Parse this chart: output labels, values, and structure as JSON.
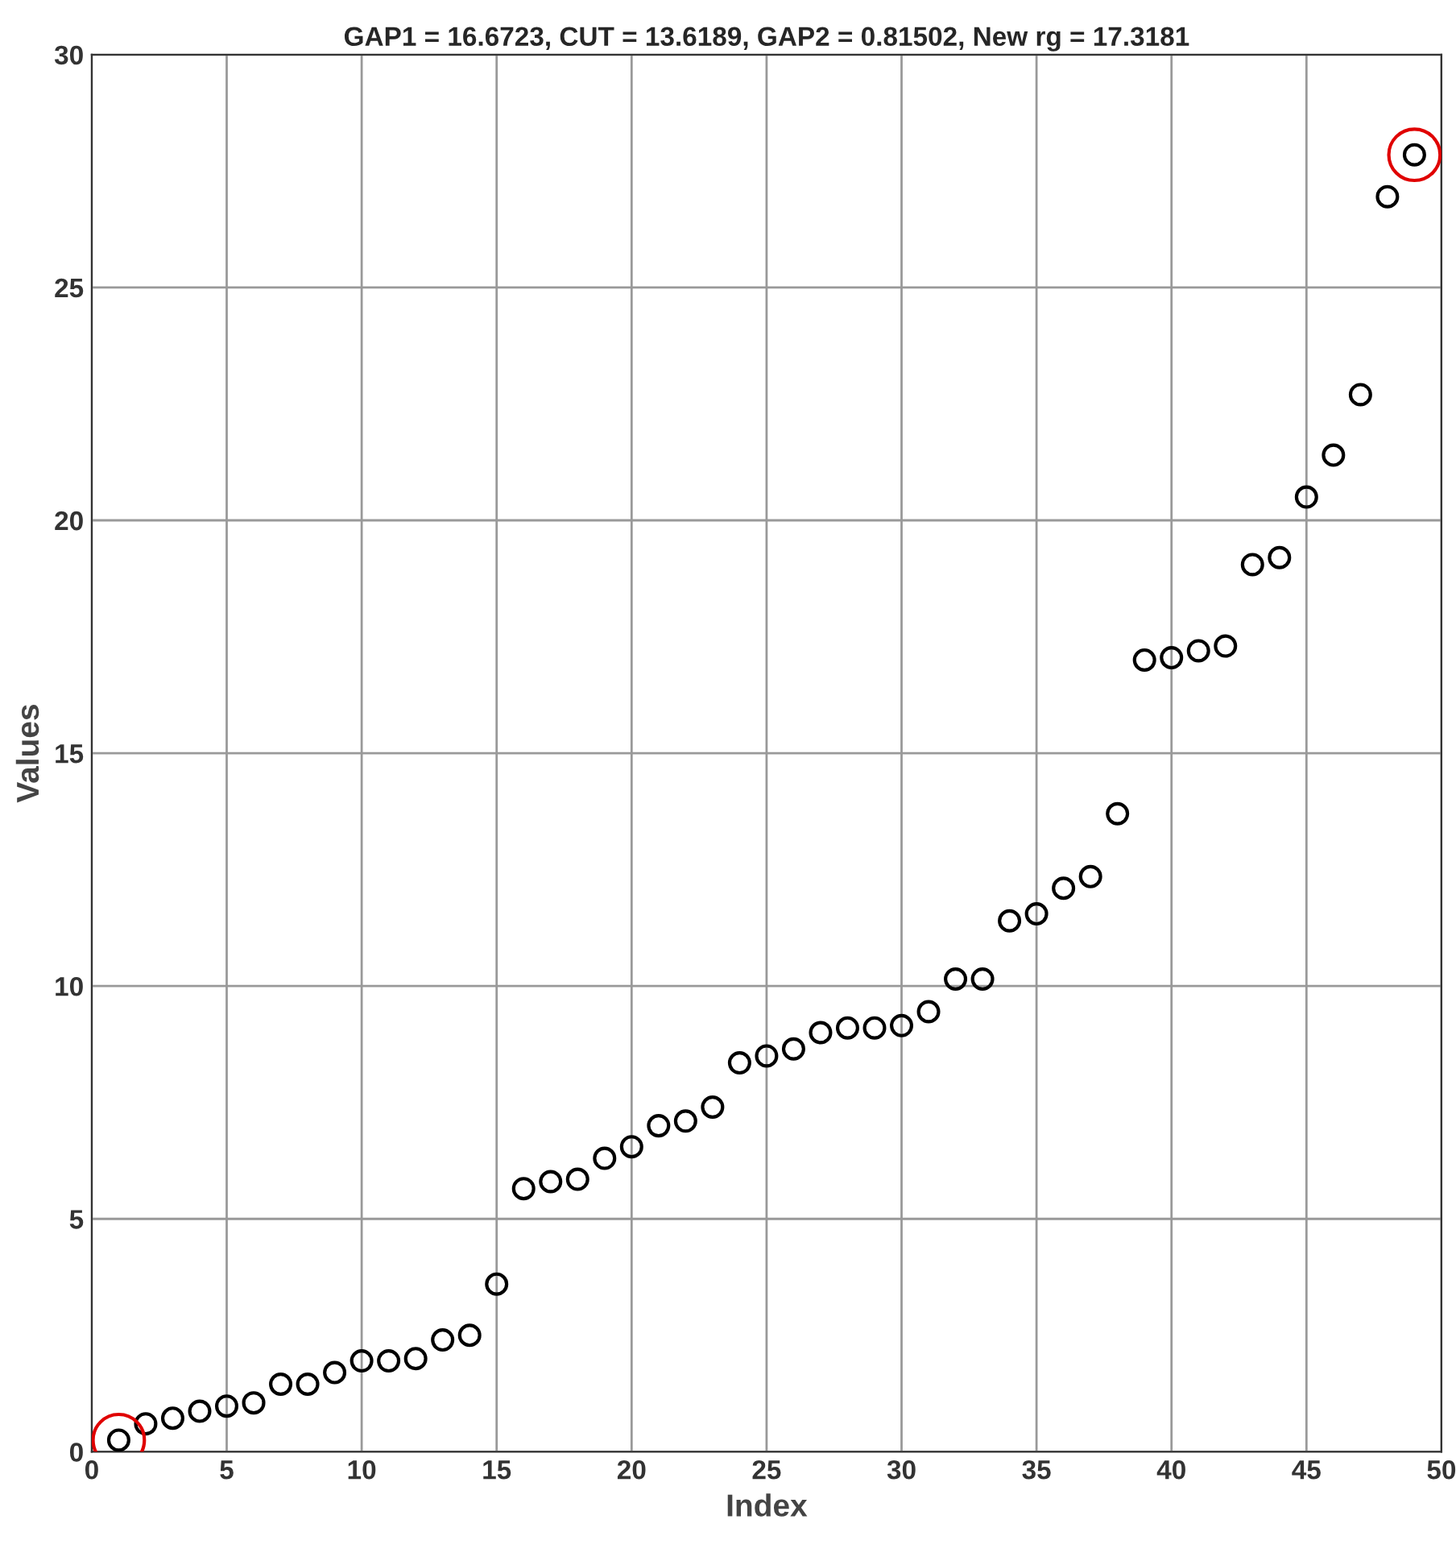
{
  "chart_data": {
    "type": "scatter",
    "title": "GAP1 = 16.6723, CUT = 13.6189, GAP2 = 0.81502, New rg = 17.3181",
    "xlabel": "Index",
    "ylabel": "Values",
    "x": [
      1,
      2,
      3,
      4,
      5,
      6,
      7,
      8,
      9,
      10,
      11,
      12,
      13,
      14,
      15,
      16,
      17,
      18,
      19,
      20,
      21,
      22,
      23,
      24,
      25,
      26,
      27,
      28,
      29,
      30,
      31,
      32,
      33,
      34,
      35,
      36,
      37,
      38,
      39,
      40,
      41,
      42,
      43,
      44,
      45,
      46,
      47,
      48,
      49
    ],
    "series": [
      {
        "color": "#000000",
        "values": [
          0.25,
          0.6,
          0.72,
          0.87,
          0.98,
          1.05,
          1.45,
          1.45,
          1.7,
          1.95,
          1.95,
          2.0,
          2.4,
          2.5,
          3.6,
          5.65,
          5.8,
          5.85,
          6.3,
          6.55,
          7.0,
          7.1,
          7.4,
          8.35,
          8.5,
          8.65,
          9.0,
          9.1,
          9.1,
          9.15,
          9.45,
          10.15,
          10.15,
          11.4,
          11.55,
          12.1,
          12.35,
          13.7,
          17.0,
          17.05,
          17.2,
          17.3,
          19.05,
          19.2,
          20.5,
          21.4,
          22.7,
          26.95,
          27.85
        ]
      }
    ],
    "xlim": [
      0,
      50
    ],
    "ylim": [
      0,
      30
    ],
    "xticks": [
      0,
      5,
      10,
      15,
      20,
      25,
      30,
      35,
      40,
      45,
      50
    ],
    "yticks": [
      0,
      5,
      10,
      15,
      20,
      25,
      30
    ],
    "grid": true,
    "marker": "circle"
  }
}
